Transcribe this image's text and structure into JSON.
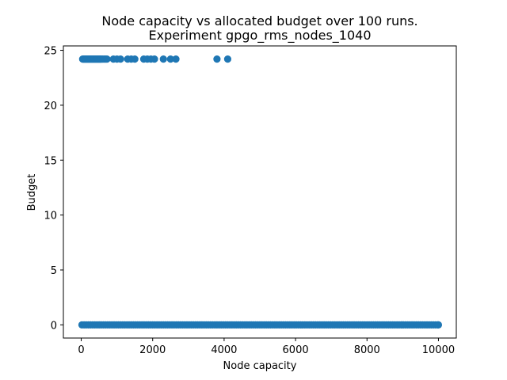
{
  "chart_data": {
    "type": "scatter",
    "title_line1": "Node capacity vs allocated budget over 100 runs.",
    "title_line2": "Experiment gpgo_rms_nodes_1040",
    "xlabel": "Node capacity",
    "ylabel": "Budget",
    "xlim": [
      -500,
      10500
    ],
    "ylim": [
      -1.2,
      25.4
    ],
    "xticks": [
      0,
      2000,
      4000,
      6000,
      8000,
      10000
    ],
    "yticks": [
      0,
      5,
      10,
      15,
      20,
      25
    ],
    "xtick_labels": [
      "0",
      "2000",
      "4000",
      "6000",
      "8000",
      "10000"
    ],
    "ytick_labels": [
      "0",
      "5",
      "10",
      "15",
      "20",
      "25"
    ],
    "grid": false,
    "marker_color": "#1f77b4",
    "high_budget_value": 24.2,
    "high_budget_points": [
      [
        40,
        24.2
      ],
      [
        60,
        24.2
      ],
      [
        80,
        24.2
      ],
      [
        100,
        24.2
      ],
      [
        120,
        24.2
      ],
      [
        140,
        24.2
      ],
      [
        160,
        24.2
      ],
      [
        180,
        24.2
      ],
      [
        200,
        24.2
      ],
      [
        220,
        24.2
      ],
      [
        240,
        24.2
      ],
      [
        260,
        24.2
      ],
      [
        280,
        24.2
      ],
      [
        300,
        24.2
      ],
      [
        320,
        24.2
      ],
      [
        340,
        24.2
      ],
      [
        360,
        24.2
      ],
      [
        380,
        24.2
      ],
      [
        400,
        24.2
      ],
      [
        420,
        24.2
      ],
      [
        440,
        24.2
      ],
      [
        460,
        24.2
      ],
      [
        480,
        24.2
      ],
      [
        500,
        24.2
      ],
      [
        520,
        24.2
      ],
      [
        540,
        24.2
      ],
      [
        560,
        24.2
      ],
      [
        600,
        24.2
      ],
      [
        640,
        24.2
      ],
      [
        680,
        24.2
      ],
      [
        720,
        24.2
      ],
      [
        900,
        24.2
      ],
      [
        1000,
        24.2
      ],
      [
        1100,
        24.2
      ],
      [
        1300,
        24.2
      ],
      [
        1400,
        24.2
      ],
      [
        1500,
        24.2
      ],
      [
        1750,
        24.2
      ],
      [
        1850,
        24.2
      ],
      [
        1950,
        24.2
      ],
      [
        2050,
        24.2
      ],
      [
        2300,
        24.2
      ],
      [
        2500,
        24.2
      ],
      [
        2650,
        24.2
      ],
      [
        3800,
        24.2
      ],
      [
        4100,
        24.2
      ]
    ],
    "low_budget_value": 0,
    "low_budget_x_range": [
      20,
      10000
    ],
    "low_budget_x_step": 60
  }
}
